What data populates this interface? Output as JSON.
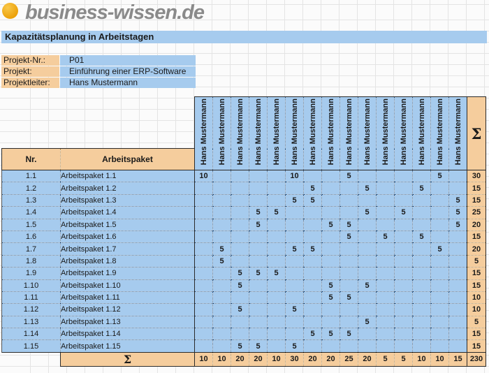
{
  "logo": {
    "text": "business-wissen.de"
  },
  "title": "Kapazitätsplanung in Arbeitstagen",
  "project": {
    "fields": [
      {
        "label": "Projekt-Nr.:",
        "value": "P01"
      },
      {
        "label": "Projekt:",
        "value": "Einführung einer ERP-Software"
      },
      {
        "label": "Projektleiter:",
        "value": "Hans Mustermann"
      }
    ]
  },
  "table": {
    "nr_header": "Nr.",
    "package_header": "Arbeitspaket",
    "sum_symbol": "Σ",
    "person_columns": [
      "Hans Mustermann",
      "Hans Mustermann",
      "Hans Mustermann",
      "Hans Mustermann",
      "Hans Mustermann",
      "Hans Mustermann",
      "Hans Mustermann",
      "Hans Mustermann",
      "Hans Mustermann",
      "Hans Mustermann",
      "Hans Mustermann",
      "Hans Mustermann",
      "Hans Mustermann",
      "Hans Mustermann",
      "Hans Mustermann"
    ],
    "rows": [
      {
        "nr": "1.1",
        "label": "Arbeitspaket 1.1",
        "values": [
          "10",
          "",
          "",
          "",
          "",
          "10",
          "",
          "",
          "5",
          "",
          "",
          "",
          "",
          "5",
          ""
        ],
        "sum": "30"
      },
      {
        "nr": "1.2",
        "label": "Arbeitspaket 1.2",
        "values": [
          "",
          "",
          "",
          "",
          "",
          "",
          "5",
          "",
          "",
          "5",
          "",
          "",
          "5",
          "",
          ""
        ],
        "sum": "15"
      },
      {
        "nr": "1.3",
        "label": "Arbeitspaket 1.3",
        "values": [
          "",
          "",
          "",
          "",
          "",
          "5",
          "5",
          "",
          "",
          "",
          "",
          "",
          "",
          "",
          "5"
        ],
        "sum": "15"
      },
      {
        "nr": "1.4",
        "label": "Arbeitspaket 1.4",
        "values": [
          "",
          "",
          "",
          "5",
          "5",
          "",
          "",
          "",
          "",
          "5",
          "",
          "5",
          "",
          "",
          "5"
        ],
        "sum": "25"
      },
      {
        "nr": "1.5",
        "label": "Arbeitspaket 1.5",
        "values": [
          "",
          "",
          "",
          "5",
          "",
          "",
          "",
          "5",
          "5",
          "",
          "",
          "",
          "",
          "",
          "5"
        ],
        "sum": "20"
      },
      {
        "nr": "1.6",
        "label": "Arbeitspaket 1.6",
        "values": [
          "",
          "",
          "",
          "",
          "",
          "",
          "",
          "",
          "5",
          "",
          "5",
          "",
          "5",
          "",
          ""
        ],
        "sum": "15"
      },
      {
        "nr": "1.7",
        "label": "Arbeitspaket 1.7",
        "values": [
          "",
          "5",
          "",
          "",
          "",
          "5",
          "5",
          "",
          "",
          "",
          "",
          "",
          "",
          "5",
          ""
        ],
        "sum": "20"
      },
      {
        "nr": "1.8",
        "label": "Arbeitspaket 1.8",
        "values": [
          "",
          "5",
          "",
          "",
          "",
          "",
          "",
          "",
          "",
          "",
          "",
          "",
          "",
          "",
          ""
        ],
        "sum": "5"
      },
      {
        "nr": "1.9",
        "label": "Arbeitspaket 1.9",
        "values": [
          "",
          "",
          "5",
          "5",
          "5",
          "",
          "",
          "",
          "",
          "",
          "",
          "",
          "",
          "",
          ""
        ],
        "sum": "15"
      },
      {
        "nr": "1.10",
        "label": "Arbeitspaket 1.10",
        "values": [
          "",
          "",
          "5",
          "",
          "",
          "",
          "",
          "5",
          "",
          "5",
          "",
          "",
          "",
          "",
          ""
        ],
        "sum": "15"
      },
      {
        "nr": "1.11",
        "label": "Arbeitspaket 1.11",
        "values": [
          "",
          "",
          "",
          "",
          "",
          "",
          "",
          "5",
          "5",
          "",
          "",
          "",
          "",
          "",
          ""
        ],
        "sum": "10"
      },
      {
        "nr": "1.12",
        "label": "Arbeitspaket 1.12",
        "values": [
          "",
          "",
          "5",
          "",
          "",
          "5",
          "",
          "",
          "",
          "",
          "",
          "",
          "",
          "",
          ""
        ],
        "sum": "10"
      },
      {
        "nr": "1.13",
        "label": "Arbeitspaket 1.13",
        "values": [
          "",
          "",
          "",
          "",
          "",
          "",
          "",
          "",
          "",
          "5",
          "",
          "",
          "",
          "",
          ""
        ],
        "sum": "5"
      },
      {
        "nr": "1.14",
        "label": "Arbeitspaket 1.14",
        "values": [
          "",
          "",
          "",
          "",
          "",
          "",
          "5",
          "5",
          "5",
          "",
          "",
          "",
          "",
          "",
          ""
        ],
        "sum": "15"
      },
      {
        "nr": "1.15",
        "label": "Arbeitspaket 1.15",
        "values": [
          "",
          "",
          "5",
          "5",
          "",
          "5",
          "",
          "",
          "",
          "",
          "",
          "",
          "",
          "",
          ""
        ],
        "sum": "15"
      }
    ],
    "column_totals": [
      "10",
      "10",
      "20",
      "20",
      "10",
      "30",
      "20",
      "20",
      "25",
      "20",
      "5",
      "5",
      "10",
      "10",
      "15"
    ],
    "grand_total": "230"
  },
  "colors": {
    "cell_blue": "#A6CBEE",
    "cell_orange": "#F5CD9D",
    "logo_circle_orange": "#EDA50D",
    "logo_text_gray": "#8A8A8A"
  }
}
